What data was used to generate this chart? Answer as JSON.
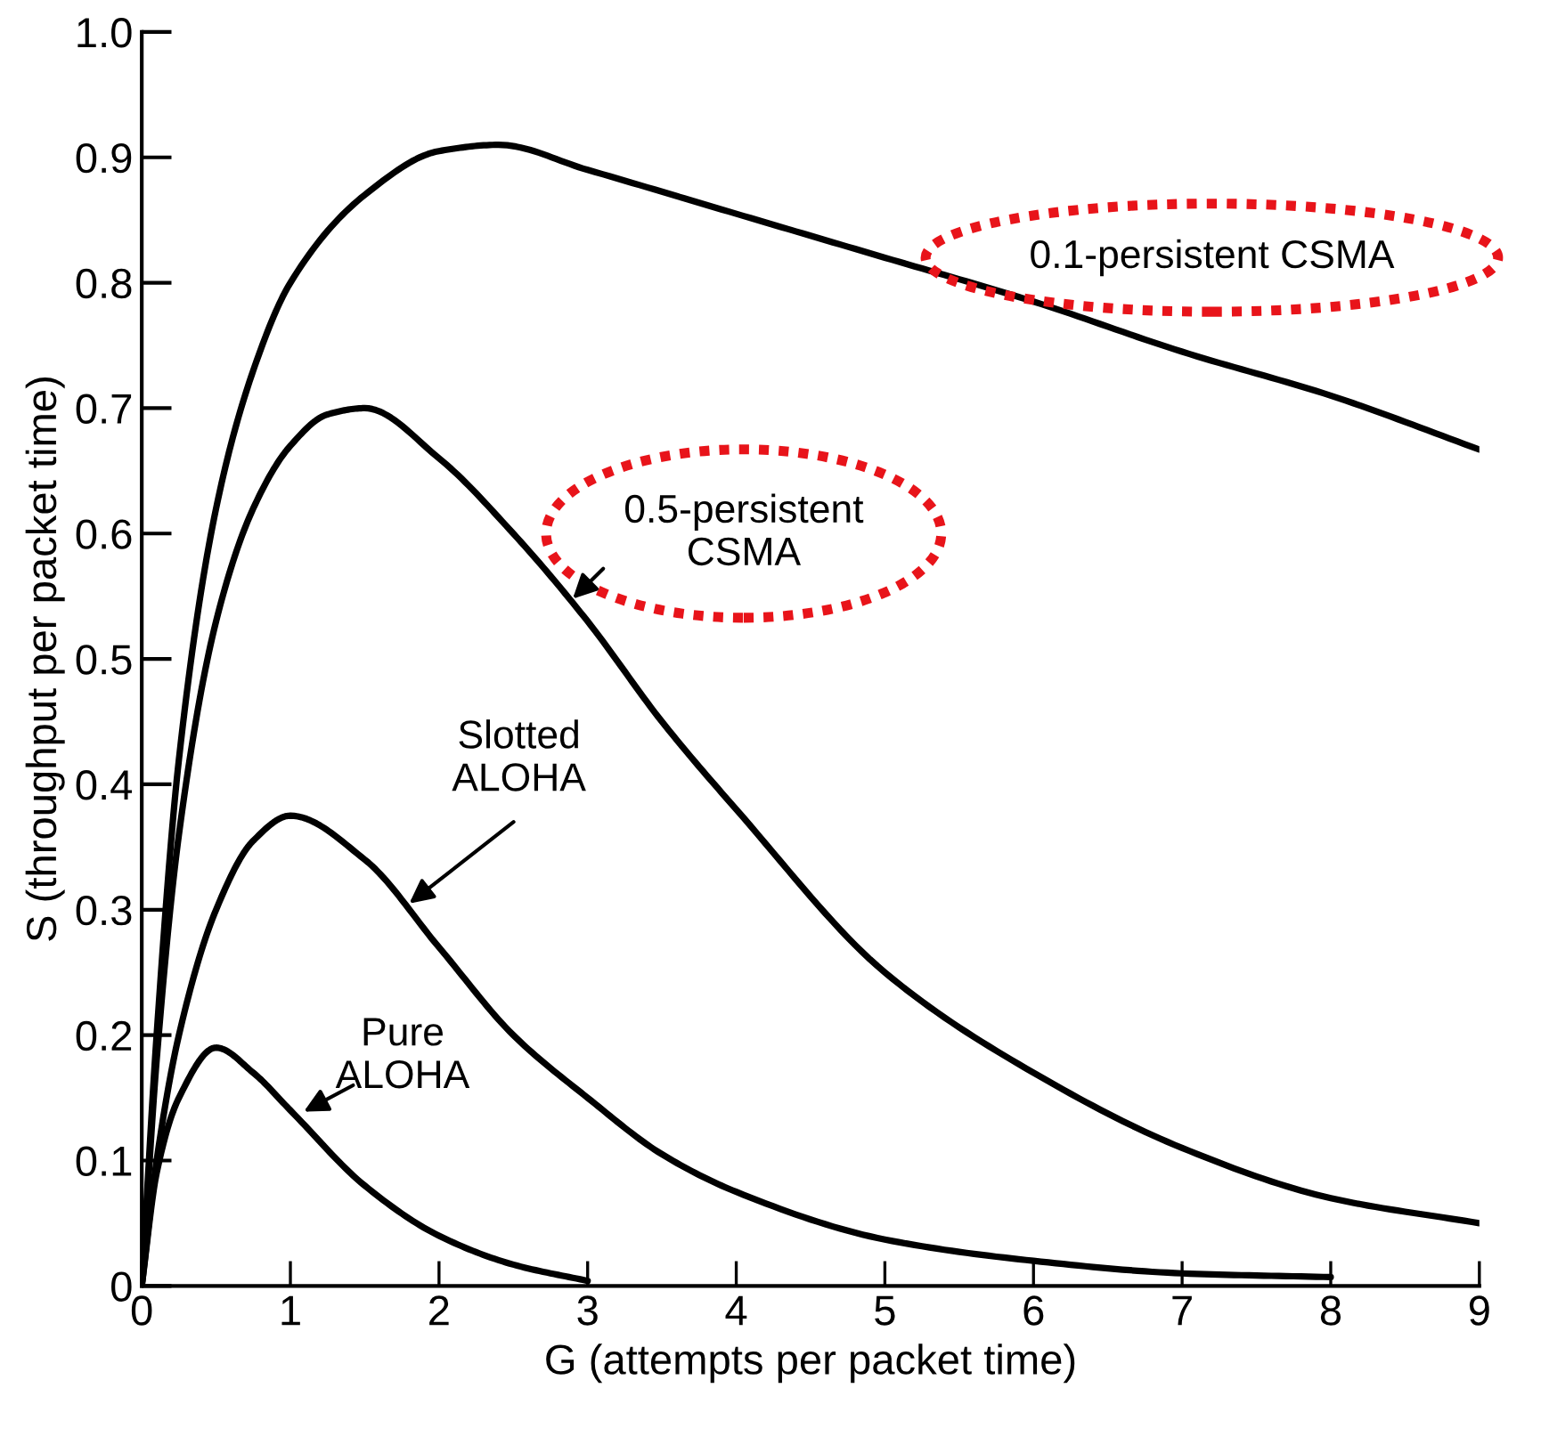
{
  "chart_data": {
    "type": "line",
    "xlabel": "G (attempts per packet time)",
    "ylabel": "S (throughput per packet time)",
    "xlim": [
      0,
      9
    ],
    "ylim": [
      0,
      1.0
    ],
    "xticks": [
      0,
      1,
      2,
      3,
      4,
      5,
      6,
      7,
      8,
      9
    ],
    "yticks": [
      0,
      0.1,
      0.2,
      0.3,
      0.4,
      0.5,
      0.6,
      0.7,
      0.8,
      0.9,
      {
        "value": 1.0,
        "label": "1.0"
      }
    ],
    "grid": false,
    "legend": false,
    "marker": "none",
    "line_style": "solid",
    "series": [
      {
        "color": "#000000",
        "x": [
          0,
          0.1,
          0.25,
          0.5,
          0.75,
          1,
          1.5,
          2,
          2.4,
          3,
          4,
          5,
          6,
          7,
          8,
          9
        ],
        "values": [
          0,
          0.2,
          0.42,
          0.62,
          0.73,
          0.8,
          0.87,
          0.905,
          0.91,
          0.89,
          0.855,
          0.82,
          0.785,
          0.745,
          0.71,
          0.667
        ]
      },
      {
        "color": "#000000",
        "x": [
          0,
          0.1,
          0.25,
          0.5,
          0.75,
          1,
          1.25,
          1.5,
          2,
          2.5,
          3,
          3.5,
          4,
          5,
          6,
          7,
          8,
          9
        ],
        "values": [
          0,
          0.18,
          0.36,
          0.53,
          0.62,
          0.67,
          0.695,
          0.7,
          0.66,
          0.6,
          0.53,
          0.45,
          0.38,
          0.25,
          0.17,
          0.11,
          0.07,
          0.05
        ]
      },
      {
        "color": "#000000",
        "x": [
          0,
          0.1,
          0.25,
          0.5,
          0.75,
          1,
          1.5,
          2,
          2.5,
          3,
          3.5,
          4,
          5,
          6,
          7,
          8
        ],
        "values": [
          0,
          0.1,
          0.2,
          0.3,
          0.355,
          0.375,
          0.34,
          0.27,
          0.2,
          0.15,
          0.105,
          0.075,
          0.037,
          0.02,
          0.01,
          0.007
        ]
      },
      {
        "color": "#000000",
        "x": [
          0,
          0.1,
          0.25,
          0.5,
          0.75,
          1,
          1.5,
          2,
          2.5,
          3
        ],
        "values": [
          0,
          0.09,
          0.15,
          0.19,
          0.17,
          0.14,
          0.08,
          0.04,
          0.017,
          0.004
        ]
      }
    ],
    "annotations": [
      "0.1-persistent CSMA",
      {
        "text": "0.5-persistent\nCSMA",
        "x": 2.9,
        "y": 0.548
      },
      {
        "text": "Slotted\nALOHA",
        "x": 1.8,
        "y": 0.305
      },
      {
        "text": "Pure\nALOHA",
        "x": 1.09,
        "y": 0.139
      }
    ]
  }
}
